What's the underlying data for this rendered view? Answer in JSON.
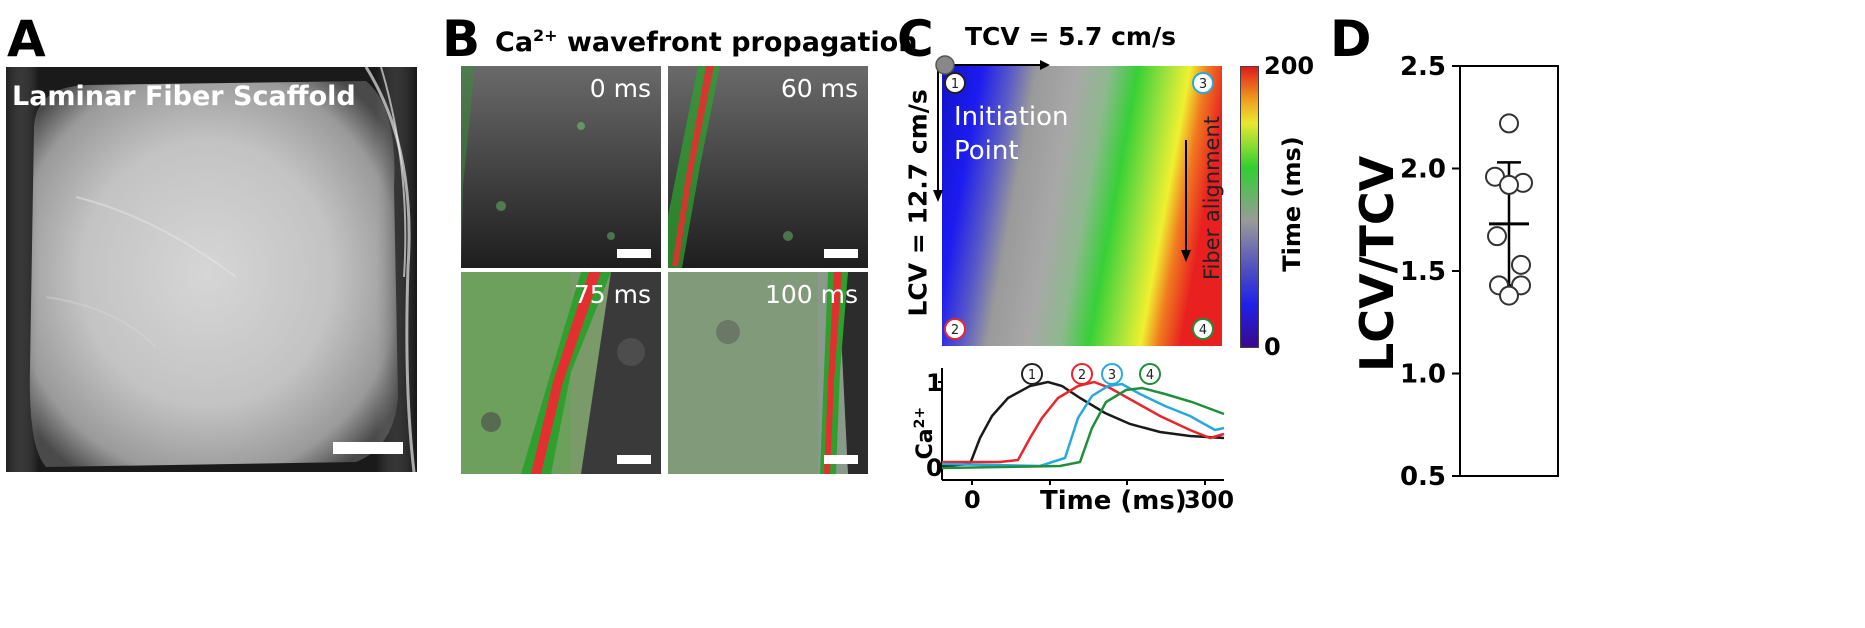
{
  "panels": {
    "A": {
      "label": "A",
      "title": "Laminar Fiber Scaffold"
    },
    "B": {
      "label": "B",
      "title_main": "Ca",
      "title_sup": "2+",
      "title_rest": " wavefront propagation",
      "tiles": [
        {
          "time": "0 ms"
        },
        {
          "time": "60 ms"
        },
        {
          "time": "75 ms"
        },
        {
          "time": "100 ms"
        }
      ]
    },
    "C": {
      "label": "C",
      "tcv": "TCV = 5.7 cm/s",
      "lcv": "LCV = 12.7 cm/s",
      "initiation": "Initiation",
      "point": "Point",
      "fiber": "Fiber alignment",
      "markers": [
        "1",
        "2",
        "3",
        "4"
      ],
      "marker_colors": [
        "#222222",
        "#e8262b",
        "#29a8e0",
        "#1f8f3a"
      ],
      "colorbar": {
        "max": "200",
        "min": "0",
        "label": "Time (ms)"
      },
      "trace": {
        "ylabel_main": "Ca",
        "ylabel_sup": "2+",
        "xlabel": "Time (ms)",
        "xticks": [
          "0",
          "300"
        ],
        "yticks": [
          "1",
          "0"
        ]
      }
    },
    "D": {
      "label": "D"
    }
  },
  "chart_data": {
    "type": "scatter",
    "title": "",
    "xlabel": "",
    "ylabel": "LCV/TCV",
    "ylim": [
      0.5,
      2.5
    ],
    "yticks": [
      "2.5",
      "2.0",
      "1.5",
      "1.0",
      "0.5"
    ],
    "points": [
      2.22,
      1.96,
      1.93,
      1.92,
      1.67,
      1.53,
      1.43,
      1.43,
      1.38
    ],
    "mean": 1.73,
    "sd_upper": 2.03,
    "sd_lower": 1.43,
    "grid": false
  }
}
